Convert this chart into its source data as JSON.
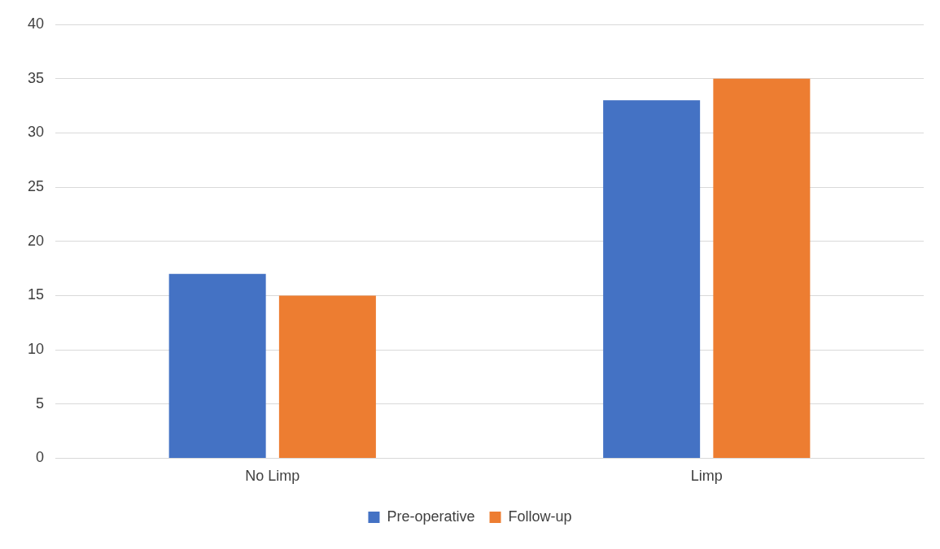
{
  "chart_data": {
    "type": "bar",
    "categories": [
      "No Limp",
      "Limp"
    ],
    "series": [
      {
        "name": "Pre-operative",
        "color": "#4472c4",
        "values": [
          17,
          33
        ]
      },
      {
        "name": "Follow-up",
        "color": "#ed7d31",
        "values": [
          15,
          35
        ]
      }
    ],
    "ylim": [
      0,
      40
    ],
    "yticks": [
      0,
      5,
      10,
      15,
      20,
      25,
      30,
      35,
      40
    ],
    "grid": "y",
    "legend": "bottom"
  }
}
